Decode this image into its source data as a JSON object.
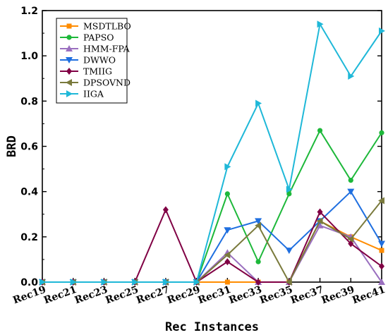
{
  "chart_data": {
    "type": "line",
    "xlabel": "Rec Instances",
    "ylabel": "BRD",
    "ylim": [
      0,
      1.2
    ],
    "yticks": [
      "0.0",
      "0.2",
      "0.4",
      "0.6",
      "0.8",
      "1.0",
      "1.2"
    ],
    "categories": [
      "Rec19",
      "Rec21",
      "Rec23",
      "Rec25",
      "Rec27",
      "Rec29",
      "Rec31",
      "Rec33",
      "Rec35",
      "Rec37",
      "Rec39",
      "Rec41"
    ],
    "legend_position": "top-left",
    "grid": false,
    "series": [
      {
        "name": "MSDTLBO",
        "color": "#ff8c00",
        "marker": "square",
        "values": [
          0,
          0,
          0,
          0,
          0,
          0,
          0,
          0,
          0,
          0.27,
          0.2,
          0.14
        ]
      },
      {
        "name": "PAPSO",
        "color": "#1db83a",
        "marker": "circle",
        "values": [
          0,
          0,
          0,
          0,
          0,
          0,
          0.39,
          0.09,
          0.39,
          0.67,
          0.45,
          0.66
        ]
      },
      {
        "name": "HMM-FPA",
        "color": "#9a6fbf",
        "marker": "triangle-up",
        "values": [
          0,
          0,
          0,
          0,
          0,
          0,
          0.13,
          0,
          0,
          0.25,
          0.2,
          0
        ]
      },
      {
        "name": "DWWO",
        "color": "#1f6fe0",
        "marker": "triangle-down",
        "values": [
          0,
          0,
          0,
          0,
          0,
          0,
          0.23,
          0.27,
          0.14,
          0.27,
          0.4,
          0.17
        ]
      },
      {
        "name": "TMIIG",
        "color": "#800044",
        "marker": "diamond",
        "values": [
          0,
          0,
          0,
          0,
          0.32,
          0,
          0.09,
          0,
          0,
          0.31,
          0.17,
          0.07
        ]
      },
      {
        "name": "DPSOVND",
        "color": "#7a7a3c",
        "marker": "triangle-left",
        "values": [
          0,
          0,
          0,
          0,
          0,
          0,
          0.12,
          0.25,
          0,
          0.27,
          0.19,
          0.36
        ]
      },
      {
        "name": "IIGA",
        "color": "#1fb8d8",
        "marker": "triangle-right",
        "values": [
          0,
          0,
          0,
          0,
          0,
          0,
          0.51,
          0.79,
          0.41,
          1.14,
          0.91,
          1.11
        ]
      }
    ]
  }
}
